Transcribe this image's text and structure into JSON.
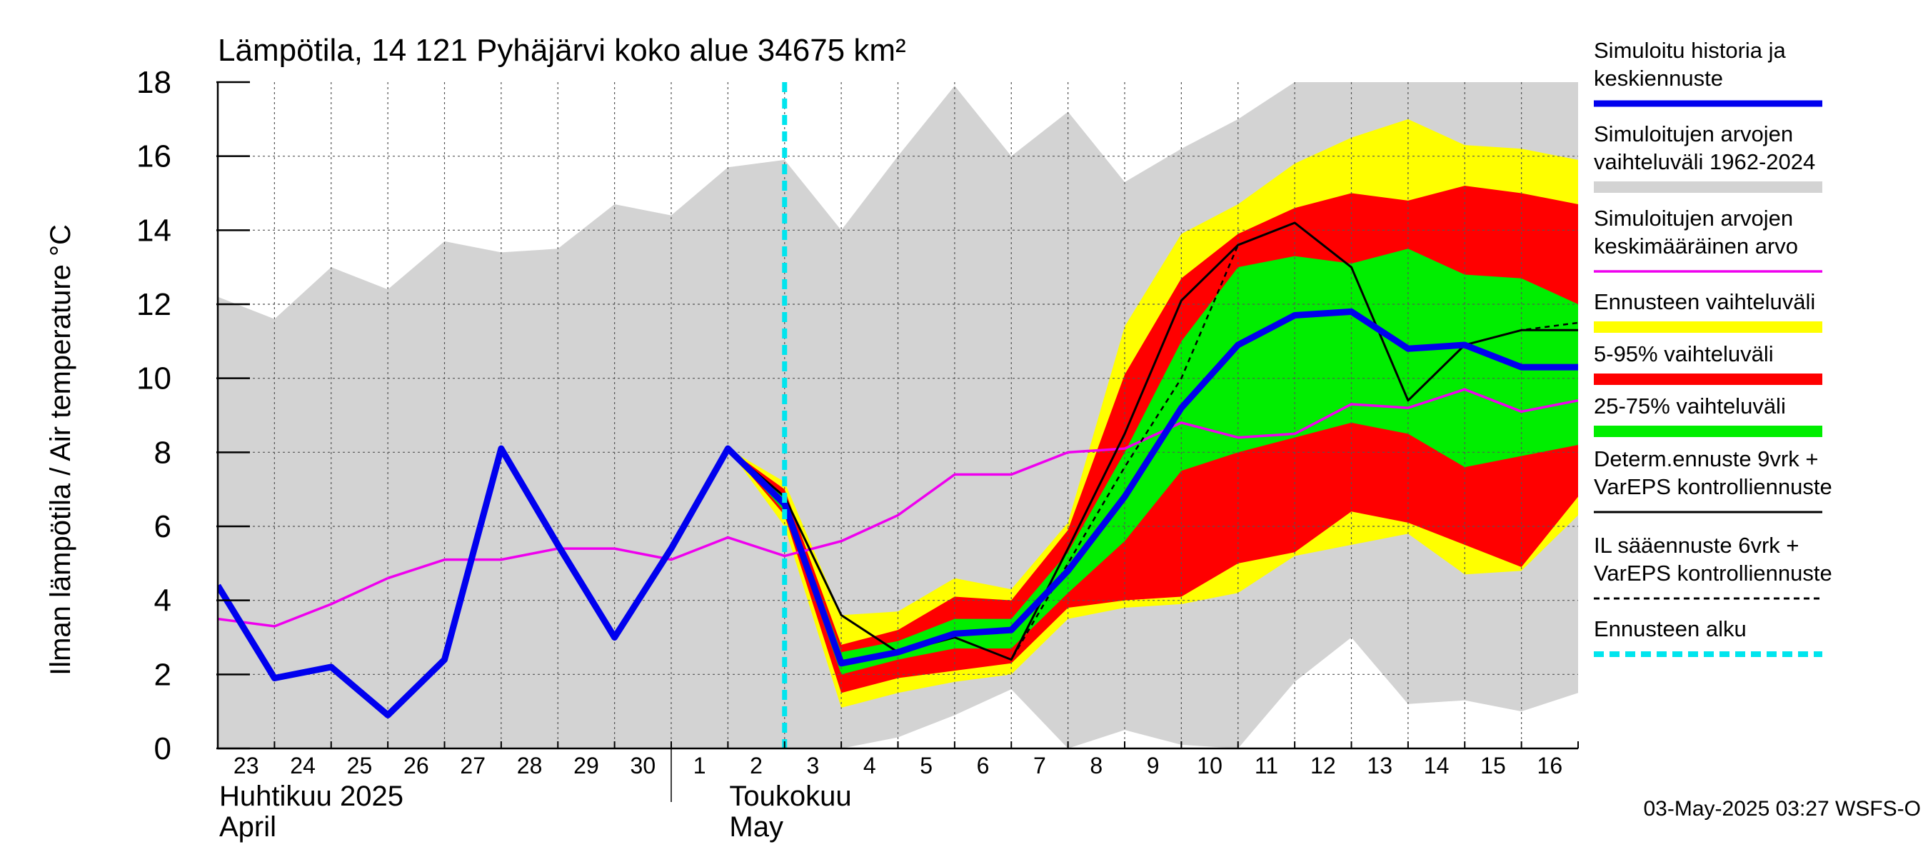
{
  "chart_data": {
    "type": "area",
    "title": "Lämpötila, 14 121 Pyhäjärvi koko alue 34675 km²",
    "ylabel": "Ilman lämpötila / Air temperature   °C",
    "ylim": [
      0,
      18
    ],
    "yticks": [
      0,
      2,
      4,
      6,
      8,
      10,
      12,
      14,
      16,
      18
    ],
    "grid": true,
    "x_range": [
      0,
      24
    ],
    "x_tick_labels": [
      "23",
      "24",
      "25",
      "26",
      "27",
      "28",
      "29",
      "30",
      "1",
      "2",
      "3",
      "4",
      "5",
      "6",
      "7",
      "8",
      "9",
      "10",
      "11",
      "12",
      "13",
      "14",
      "15",
      "16"
    ],
    "month_labels": [
      {
        "line1": "Huhtikuu  2025",
        "line2": "April",
        "at_day": 0
      },
      {
        "line1": "Toukokuu",
        "line2": "May",
        "at_day": 9
      }
    ],
    "month_separator_day": 8,
    "forecast_start_day": 10,
    "legend_position": "right",
    "timestamp": "03-May-2025 03:27 WSFS-O",
    "x": [
      0,
      1,
      2,
      3,
      4,
      5,
      6,
      7,
      8,
      9,
      10,
      11,
      12,
      13,
      14,
      15,
      16,
      17,
      18,
      19,
      20,
      21,
      22,
      23,
      24
    ],
    "series": [
      {
        "name": "Simuloitujen arvojen vaihteluväli 1962-2024",
        "kind": "band",
        "color": "#d3d3d3",
        "x": [
          0,
          1,
          2,
          3,
          4,
          5,
          6,
          7,
          8,
          9,
          10,
          11,
          12,
          13,
          14,
          15,
          16,
          17,
          18,
          19,
          20,
          21,
          22,
          23,
          24
        ],
        "upper": [
          12.2,
          11.6,
          13.0,
          12.4,
          13.7,
          13.4,
          13.5,
          14.7,
          14.4,
          15.7,
          15.9,
          14.0,
          16.0,
          17.9,
          16.0,
          17.2,
          15.3,
          16.2,
          17.0,
          18.0,
          18.0,
          18.0,
          18.0,
          18.0,
          18.0
        ],
        "lower": [
          0,
          0,
          0,
          0,
          0,
          0,
          0,
          0,
          0,
          0,
          0,
          0,
          0.3,
          0.9,
          1.6,
          0,
          0.5,
          0.1,
          0,
          1.8,
          3.0,
          1.2,
          1.3,
          1.0,
          1.5
        ]
      },
      {
        "name": "Ennusteen vaihteluväli",
        "kind": "band",
        "color": "#ffff00",
        "x": [
          9,
          10,
          11,
          12,
          13,
          14,
          15,
          16,
          17,
          18,
          19,
          20,
          21,
          22,
          23,
          24
        ],
        "upper": [
          8.1,
          7.2,
          3.6,
          3.7,
          4.6,
          4.3,
          6.1,
          11.4,
          13.9,
          14.7,
          15.8,
          16.5,
          17.0,
          16.3,
          16.2,
          15.9
        ],
        "lower": [
          8.1,
          6.0,
          1.1,
          1.5,
          1.8,
          2.0,
          3.5,
          3.8,
          3.9,
          4.2,
          5.2,
          5.5,
          5.8,
          4.7,
          4.8,
          6.3
        ]
      },
      {
        "name": "5-95% vaihteluväli",
        "kind": "band",
        "color": "#ff0000",
        "x": [
          9,
          10,
          11,
          12,
          13,
          14,
          15,
          16,
          17,
          18,
          19,
          20,
          21,
          22,
          23,
          24
        ],
        "upper": [
          8.1,
          7.0,
          2.8,
          3.2,
          4.1,
          4.0,
          5.9,
          10.1,
          12.7,
          13.9,
          14.6,
          15.0,
          14.8,
          15.2,
          15.0,
          14.7
        ],
        "lower": [
          8.1,
          6.3,
          1.5,
          1.9,
          2.1,
          2.3,
          3.8,
          4.0,
          4.1,
          5.0,
          5.3,
          6.4,
          6.1,
          5.5,
          4.9,
          6.8
        ]
      },
      {
        "name": "25-75% vaihteluväli",
        "kind": "band",
        "color": "#00ee00",
        "x": [
          9,
          10,
          11,
          12,
          13,
          14,
          15,
          16,
          17,
          18,
          19,
          20,
          21,
          22,
          23,
          24
        ],
        "upper": [
          8.1,
          6.8,
          2.6,
          2.9,
          3.5,
          3.5,
          5.3,
          8.0,
          11.0,
          13.0,
          13.3,
          13.1,
          13.5,
          12.8,
          12.7,
          12.0
        ],
        "lower": [
          8.1,
          6.4,
          2.0,
          2.4,
          2.7,
          2.7,
          4.2,
          5.6,
          7.5,
          8.0,
          8.4,
          8.8,
          8.5,
          7.6,
          7.9,
          8.2
        ]
      },
      {
        "name": "Simuloitujen arvojen keskimääräinen arvo",
        "kind": "line",
        "color": "#ee00ee",
        "x": [
          0,
          1,
          2,
          3,
          4,
          5,
          6,
          7,
          8,
          9,
          10,
          11,
          12,
          13,
          14,
          15,
          16,
          17,
          18,
          19,
          20,
          21,
          22,
          23,
          24
        ],
        "values": [
          3.5,
          3.3,
          3.9,
          4.6,
          5.1,
          5.1,
          5.4,
          5.4,
          5.1,
          5.7,
          5.2,
          5.6,
          6.3,
          7.4,
          7.4,
          8.0,
          8.1,
          8.8,
          8.4,
          8.5,
          9.3,
          9.2,
          9.7,
          9.1,
          9.4
        ]
      },
      {
        "name": "Determ.ennuste 9vrk + VarEPS kontrolliennuste",
        "kind": "line",
        "color": "#000000",
        "x": [
          8,
          9,
          10,
          11,
          12,
          13,
          14,
          15,
          16,
          17,
          18,
          19,
          20,
          21,
          22,
          23,
          24
        ],
        "values": [
          5.4,
          8.1,
          6.8,
          3.6,
          2.6,
          3.0,
          2.4,
          5.4,
          8.5,
          12.1,
          13.6,
          14.2,
          13.0,
          9.4,
          10.9,
          11.3,
          11.3
        ]
      },
      {
        "name": "IL sääennuste 6vrk  + VarEPS kontrolliennuste",
        "kind": "dashed-line",
        "color": "#000000",
        "x": [
          8,
          9,
          10,
          11,
          12,
          13,
          14,
          15,
          16,
          17,
          18,
          19,
          20,
          21,
          22,
          23,
          24
        ],
        "values": [
          5.4,
          8.1,
          6.8,
          3.6,
          2.6,
          3.0,
          2.4,
          5.0,
          7.6,
          10.0,
          13.6,
          14.2,
          13.0,
          9.4,
          10.9,
          11.3,
          11.5
        ]
      },
      {
        "name": "Simuloitu historia ja keskiennuste",
        "kind": "thick-line",
        "color": "#0000ee",
        "x": [
          0,
          1,
          2,
          3,
          4,
          5,
          6,
          7,
          8,
          9,
          10,
          11,
          12,
          13,
          14,
          15,
          16,
          17,
          18,
          19,
          20,
          21,
          22,
          23,
          24
        ],
        "values": [
          4.4,
          1.9,
          2.2,
          0.9,
          2.4,
          8.1,
          5.5,
          3.0,
          5.4,
          8.1,
          6.6,
          2.3,
          2.6,
          3.1,
          3.2,
          4.8,
          6.8,
          9.2,
          10.9,
          11.7,
          11.8,
          10.8,
          10.9,
          10.3,
          10.3
        ]
      }
    ]
  },
  "legend": [
    {
      "lines": [
        "Simuloitu historia ja",
        "keskiennuste"
      ],
      "color": "#0000ee",
      "style": "thick"
    },
    {
      "lines": [
        "Simuloitujen arvojen",
        "vaihteluväli 1962-2024"
      ],
      "color": "#d3d3d3",
      "style": "band"
    },
    {
      "lines": [
        "Simuloitujen arvojen",
        "keskimääräinen arvo"
      ],
      "color": "#ee00ee",
      "style": "thin"
    },
    {
      "lines": [
        "Ennusteen vaihteluväli"
      ],
      "color": "#ffff00",
      "style": "band"
    },
    {
      "lines": [
        "5-95% vaihteluväli"
      ],
      "color": "#ff0000",
      "style": "band"
    },
    {
      "lines": [
        "25-75% vaihteluväli"
      ],
      "color": "#00ee00",
      "style": "band"
    },
    {
      "lines": [
        "Determ.ennuste 9vrk +",
        "VarEPS kontrolliennuste"
      ],
      "color": "#000000",
      "style": "line"
    },
    {
      "lines": [
        "IL sääennuste 6vrk  +",
        "  VarEPS kontrolliennuste"
      ],
      "color": "#000000",
      "style": "dashed"
    },
    {
      "lines": [
        "Ennusteen alku"
      ],
      "color": "#00e5ee",
      "style": "cyan-dashed"
    }
  ]
}
